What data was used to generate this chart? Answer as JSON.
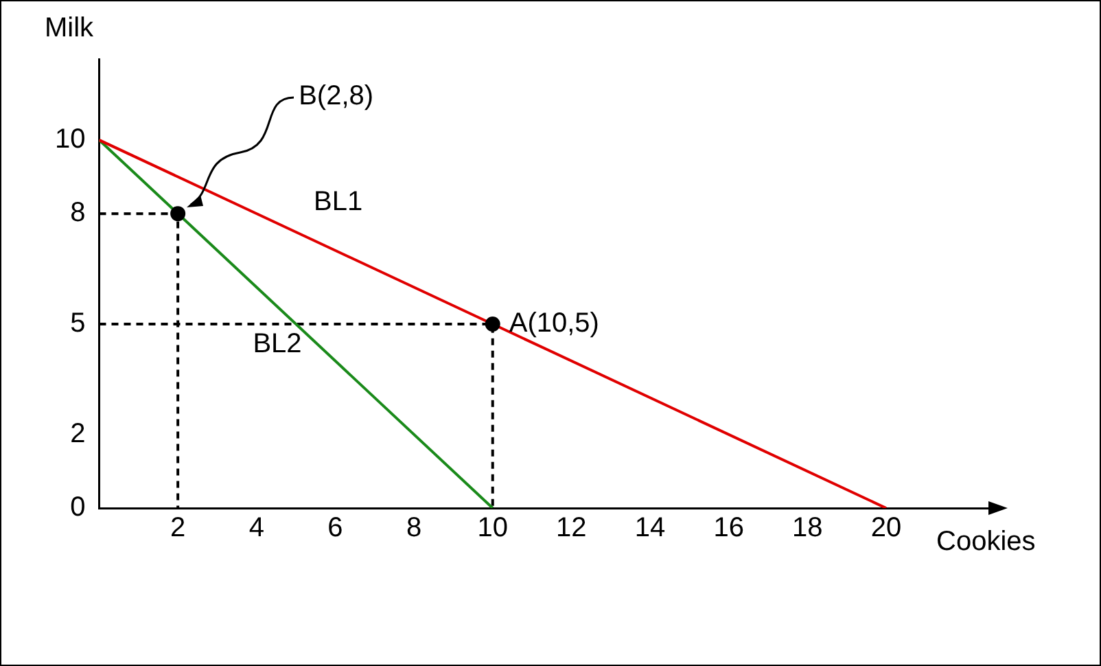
{
  "chart_data": {
    "type": "line",
    "xlabel": "Cookies",
    "ylabel": "Milk",
    "xlim": [
      0,
      22.6
    ],
    "ylim": [
      0,
      12.2
    ],
    "xticks": [
      2,
      4,
      6,
      8,
      10,
      12,
      14,
      16,
      18,
      20
    ],
    "yticks": [
      0,
      2,
      5,
      8,
      10
    ],
    "grid": false,
    "legend": false,
    "marker": "none",
    "series": [
      {
        "name": "BL1",
        "color": "#e00000",
        "x": [
          0,
          20
        ],
        "values": [
          10,
          0
        ]
      },
      {
        "name": "BL2",
        "color": "#1a8a1a",
        "x": [
          0,
          10
        ],
        "values": [
          10,
          0
        ]
      },
      {
        "color": "#000000",
        "x": [
          0,
          2,
          2
        ],
        "values": [
          8,
          8,
          0
        ],
        "line_style": "dashed"
      },
      {
        "color": "#000000",
        "x": [
          0,
          10,
          10
        ],
        "values": [
          5,
          5,
          0
        ],
        "line_style": "dashed"
      },
      {
        "type": "scatter",
        "color": "#000000",
        "x": [
          10,
          2
        ],
        "values": [
          5,
          8
        ],
        "marker": "circle"
      }
    ],
    "annotations": [
      {
        "text": "A(10,5)",
        "x": 10,
        "y": 5
      },
      "B(2,8)"
    ]
  }
}
